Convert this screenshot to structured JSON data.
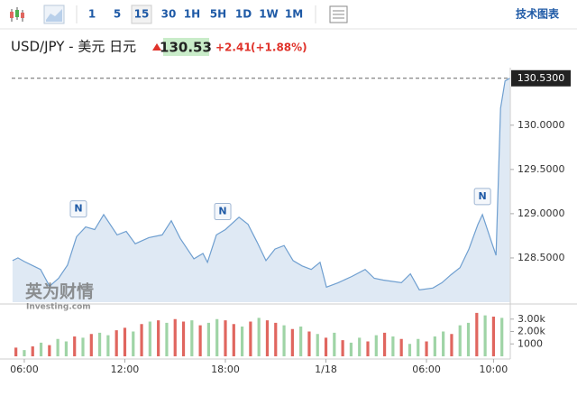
{
  "toolbar": {
    "intervals": [
      "1",
      "5",
      "15",
      "30",
      "1H",
      "5H",
      "1D",
      "1W",
      "1M"
    ],
    "active": "15",
    "link": "技术图表"
  },
  "header": {
    "title": "USD/JPY - 美元 日元",
    "price": "130.53",
    "change": "+2.41",
    "change_pct": "(+1.88%)"
  },
  "watermark": {
    "brand": "英为财情",
    "site": "Investing.com"
  },
  "chart_data": [
    {
      "type": "area",
      "color": "#6f9fd0",
      "fill": "#dfe9f4",
      "x": [
        -0.7,
        -0.38,
        0,
        0.54,
        0.97,
        1.51,
        2.05,
        2.58,
        3.12,
        3.66,
        4.2,
        4.74,
        5.54,
        6.08,
        6.62,
        7.43,
        8.23,
        8.77,
        9.31,
        10.12,
        10.66,
        10.93,
        11.46,
        12.0,
        12.81,
        13.35,
        13.89,
        14.42,
        14.96,
        15.5,
        16.04,
        16.58,
        17.12,
        17.65,
        18.03,
        18.73,
        19.54,
        20.34,
        20.88,
        21.42,
        22.5,
        23.04,
        23.57,
        24.38,
        24.92,
        25.46,
        26.0,
        26.53,
        27.07,
        27.34,
        27.88,
        28.15,
        28.42,
        28.69,
        28.96
      ],
      "values": [
        128.47,
        128.5,
        128.46,
        128.41,
        128.37,
        128.18,
        128.27,
        128.42,
        128.74,
        128.85,
        128.82,
        128.99,
        128.76,
        128.8,
        128.66,
        128.73,
        128.76,
        128.92,
        128.72,
        128.49,
        128.55,
        128.45,
        128.76,
        128.82,
        128.96,
        128.88,
        128.68,
        128.47,
        128.6,
        128.64,
        128.47,
        128.41,
        128.37,
        128.45,
        128.17,
        128.22,
        128.29,
        128.37,
        128.27,
        128.25,
        128.22,
        128.32,
        128.14,
        128.16,
        128.22,
        128.31,
        128.39,
        128.6,
        128.88,
        128.99,
        128.68,
        128.53,
        130.19,
        130.5,
        130.53
      ],
      "last_price": 130.53,
      "last_price_label": "130.5300",
      "annotations": [
        {
          "x": 3.23,
          "label": "N"
        },
        {
          "x": 11.84,
          "label": "N"
        },
        {
          "x": 27.34,
          "label": "N"
        }
      ],
      "xlim": [
        -0.75,
        29
      ],
      "xticks": [
        {
          "value": 0,
          "label": "06:00"
        },
        {
          "value": 6,
          "label": "12:00"
        },
        {
          "value": 12,
          "label": "18:00"
        },
        {
          "value": 18,
          "label": "1/18"
        },
        {
          "value": 24,
          "label": "06:00"
        },
        {
          "value": 28,
          "label": "10:00"
        }
      ],
      "ylim": [
        128.0,
        130.65
      ],
      "yticks": [
        {
          "value": 128.5,
          "label": "128.5000"
        },
        {
          "value": 129.0,
          "label": "129.0000"
        },
        {
          "value": 129.5,
          "label": "129.5000"
        },
        {
          "value": 130.0,
          "label": "130.0000"
        }
      ]
    },
    {
      "type": "bar",
      "x": [
        -0.5,
        0,
        0.5,
        1,
        1.5,
        2,
        2.5,
        3,
        3.5,
        4,
        4.5,
        5,
        5.5,
        6,
        6.5,
        7,
        7.5,
        8,
        8.5,
        9,
        9.5,
        10,
        10.5,
        11,
        11.5,
        12,
        12.5,
        13,
        13.5,
        14,
        14.5,
        15,
        15.5,
        16,
        16.5,
        17,
        17.5,
        18,
        18.5,
        19,
        19.5,
        20,
        20.5,
        21,
        21.5,
        22,
        22.5,
        23,
        23.5,
        24,
        24.5,
        25,
        25.5,
        26,
        26.5,
        27,
        27.5,
        28,
        28.5
      ],
      "values": [
        700,
        500,
        800,
        1100,
        900,
        1400,
        1200,
        1600,
        1500,
        1800,
        1900,
        1700,
        2100,
        2300,
        2000,
        2600,
        2800,
        2900,
        2700,
        3000,
        2800,
        2900,
        2500,
        2700,
        3000,
        2900,
        2600,
        2400,
        2800,
        3100,
        2900,
        2700,
        2500,
        2200,
        2400,
        2000,
        1800,
        1500,
        1900,
        1300,
        1100,
        1500,
        1200,
        1700,
        1900,
        1600,
        1400,
        1000,
        1400,
        1200,
        1600,
        2000,
        1800,
        2500,
        2700,
        3500,
        3300,
        3200,
        3100
      ],
      "colors": [
        "#e0665f",
        "#9fd4a6",
        "#e0665f",
        "#9fd4a6",
        "#e0665f",
        "#9fd4a6",
        "#9fd4a6",
        "#e0665f",
        "#9fd4a6",
        "#e0665f",
        "#9fd4a6",
        "#9fd4a6",
        "#e0665f",
        "#e0665f",
        "#9fd4a6",
        "#e0665f",
        "#9fd4a6",
        "#e0665f",
        "#9fd4a6",
        "#e0665f",
        "#e0665f",
        "#9fd4a6",
        "#e0665f",
        "#9fd4a6",
        "#9fd4a6",
        "#e0665f",
        "#e0665f",
        "#9fd4a6",
        "#e0665f",
        "#9fd4a6",
        "#e0665f",
        "#e0665f",
        "#9fd4a6",
        "#e0665f",
        "#9fd4a6",
        "#e0665f",
        "#9fd4a6",
        "#e0665f",
        "#9fd4a6",
        "#e0665f",
        "#9fd4a6",
        "#9fd4a6",
        "#e0665f",
        "#9fd4a6",
        "#e0665f",
        "#9fd4a6",
        "#e0665f",
        "#9fd4a6",
        "#9fd4a6",
        "#e0665f",
        "#9fd4a6",
        "#9fd4a6",
        "#e0665f",
        "#9fd4a6",
        "#9fd4a6",
        "#e0665f",
        "#9fd4a6",
        "#e0665f",
        "#9fd4a6"
      ],
      "xlim": [
        -0.75,
        29
      ],
      "ylim": [
        0,
        4000
      ],
      "yticks": [
        1000,
        {
          "value": 2000,
          "label": "2.00k"
        },
        {
          "value": 3000,
          "label": "3.00k"
        }
      ]
    }
  ]
}
